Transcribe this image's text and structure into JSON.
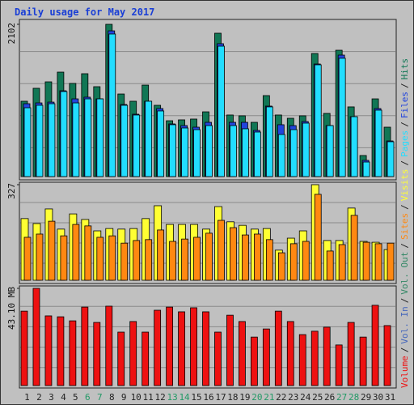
{
  "chart_data": {
    "type": "bar",
    "title": "Daily usage for May 2017",
    "categories": [
      "1",
      "2",
      "3",
      "4",
      "5",
      "6",
      "7",
      "8",
      "9",
      "10",
      "11",
      "12",
      "13",
      "14",
      "15",
      "16",
      "17",
      "18",
      "19",
      "20",
      "21",
      "22",
      "23",
      "24",
      "25",
      "26",
      "27",
      "28",
      "29",
      "30",
      "31"
    ],
    "category_colors": [
      "#222222",
      "#222222",
      "#222222",
      "#222222",
      "#222222",
      "#229966",
      "#229966",
      "#222222",
      "#222222",
      "#222222",
      "#222222",
      "#222222",
      "#229966",
      "#229966",
      "#222222",
      "#222222",
      "#222222",
      "#222222",
      "#222222",
      "#229966",
      "#229966",
      "#222222",
      "#222222",
      "#222222",
      "#222222",
      "#222222",
      "#229966",
      "#229966",
      "#222222",
      "#222222",
      "#222222"
    ],
    "grid": true,
    "panels": [
      {
        "ylim": [
          0,
          2102
        ],
        "yticks": [
          2102
        ],
        "series": [
          {
            "name": "Hits",
            "color": "#117755",
            "values": [
              1040,
              1219,
              1308,
              1442,
              1286,
              1420,
              1241,
              2102,
              1140,
              1040,
              1263,
              984,
              771,
              783,
              794,
              894,
              1979,
              850,
              839,
              749,
              1118,
              850,
              805,
              839,
              1699,
              872,
              1744,
              962,
              291,
              1073,
              682
            ]
          },
          {
            "name": "Files",
            "color": "#2244dd",
            "values": [
              1006,
              1017,
              1028,
              1185,
              1073,
              1096,
              1073,
              2012,
              995,
              861,
              1040,
              939,
              727,
              704,
              682,
              749,
              1834,
              749,
              749,
              637,
              973,
              716,
              704,
              760,
              1554,
              704,
              1677,
              827,
              224,
              939,
              492
            ]
          },
          {
            "name": "Pages",
            "color": "#22ddff",
            "values": [
              950,
              984,
              1006,
              1174,
              1017,
              1073,
              1073,
              1968,
              984,
              850,
              1040,
              906,
              716,
              671,
              648,
              704,
              1800,
              704,
              660,
              615,
              962,
              581,
              648,
              738,
              1543,
              704,
              1633,
              827,
              201,
              917,
              481
            ]
          }
        ]
      },
      {
        "ylim": [
          0,
          327
        ],
        "yticks": [
          327
        ],
        "series": [
          {
            "name": "Visits",
            "color": "#ffff33",
            "values": [
              211,
              194,
              244,
              175,
              227,
              208,
              169,
              177,
              175,
              177,
              211,
              255,
              191,
              191,
              191,
              175,
              252,
              200,
              188,
              175,
              177,
              103,
              144,
              169,
              327,
              136,
              136,
              247,
              133,
              130,
              105
            ]
          },
          {
            "name": "Sites",
            "color": "#ff8811",
            "values": [
              147,
              158,
              202,
              152,
              191,
              186,
              147,
              152,
              127,
              136,
              139,
              172,
              133,
              141,
              147,
              161,
              205,
              180,
              155,
              158,
              139,
              94,
              125,
              133,
              294,
              100,
              122,
              222,
              130,
              125,
              127
            ]
          }
        ]
      },
      {
        "ylim": [
          0,
          43.1
        ],
        "yticks": [
          {
            "value": 43.1,
            "label": "43.10 MB"
          }
        ],
        "series": [
          {
            "name": "Vol. Out",
            "color": "#338866",
            "values": [
              0,
              0,
              0,
              0,
              0,
              0,
              0,
              0,
              0,
              0,
              0,
              0,
              0,
              0,
              0,
              0,
              0,
              0,
              0,
              0,
              0,
              0,
              0,
              0,
              0,
              0,
              0,
              0,
              0,
              0,
              0
            ]
          },
          {
            "name": "Vol. In",
            "color": "#4466bb",
            "values": [
              0,
              0,
              0,
              0,
              0,
              0,
              0,
              0,
              0,
              0,
              0,
              0,
              0,
              0,
              0,
              0,
              0,
              0,
              0,
              0,
              0,
              0,
              0,
              0,
              0,
              0,
              0,
              0,
              0,
              0,
              0
            ]
          },
          {
            "name": "Volume",
            "color": "#ee1111",
            "values": [
              33.0,
              43.1,
              30.9,
              30.5,
              28.7,
              34.8,
              28.0,
              35.2,
              23.7,
              28.4,
              23.7,
              33.4,
              34.8,
              32.7,
              34.5,
              32.7,
              23.7,
              31.2,
              28.4,
              21.5,
              25.1,
              33.0,
              28.4,
              22.6,
              24.1,
              25.9,
              18.0,
              28.0,
              21.5,
              35.6,
              26.6
            ]
          }
        ]
      }
    ],
    "legend_separator": "/"
  }
}
